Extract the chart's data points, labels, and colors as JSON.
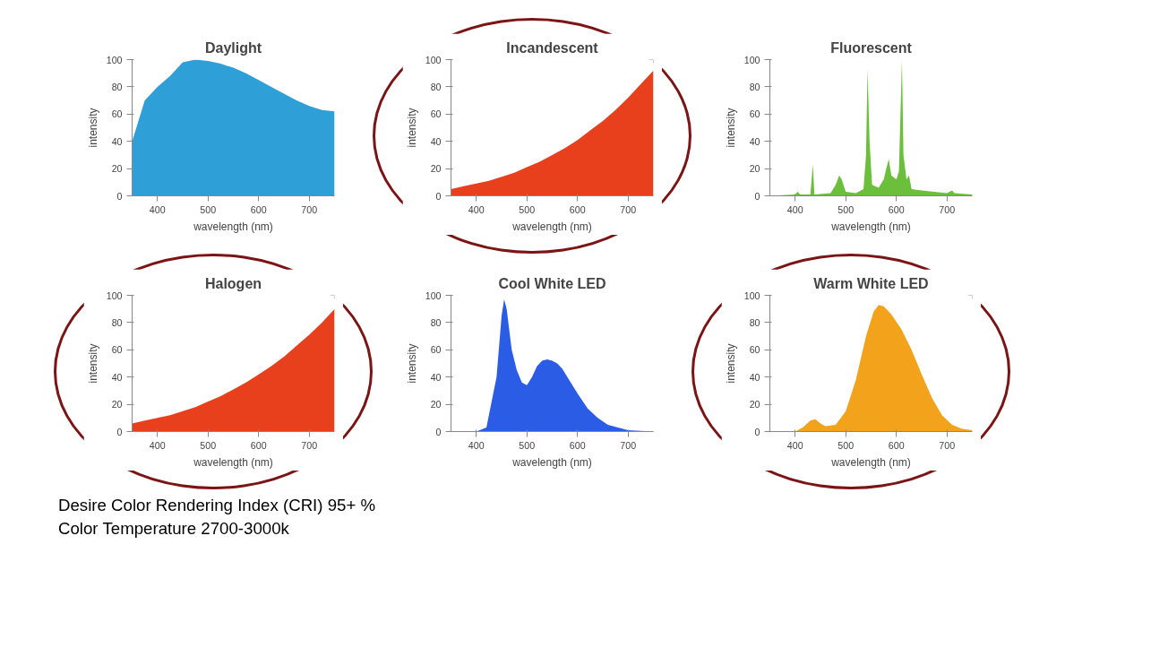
{
  "chart_data": [
    {
      "type": "area",
      "title": "Daylight",
      "xlabel": "wavelength (nm)",
      "ylabel": "intensity",
      "xlim": [
        350,
        750
      ],
      "xticks": [
        400,
        500,
        600,
        700
      ],
      "ylim": [
        0,
        100
      ],
      "yticks": [
        0,
        20,
        40,
        60,
        80,
        100
      ],
      "grid": false,
      "series": [
        {
          "color": "#2f9fd8",
          "x": [
            350,
            375,
            400,
            425,
            450,
            475,
            500,
            525,
            550,
            575,
            600,
            625,
            650,
            675,
            700,
            725,
            750
          ],
          "values": [
            40,
            70,
            80,
            88,
            98,
            100,
            99,
            97,
            94,
            90,
            85,
            80,
            75,
            70,
            66,
            63,
            62
          ]
        }
      ]
    },
    {
      "type": "area",
      "title": "Incandescent",
      "xlabel": "wavelength (nm)",
      "ylabel": "intensity",
      "xlim": [
        350,
        750
      ],
      "xticks": [
        400,
        500,
        600,
        700
      ],
      "ylim": [
        0,
        100
      ],
      "yticks": [
        0,
        20,
        40,
        60,
        80,
        100
      ],
      "grid": false,
      "series": [
        {
          "color": "#e8401c",
          "x": [
            350,
            375,
            400,
            425,
            450,
            475,
            500,
            525,
            550,
            575,
            600,
            625,
            650,
            675,
            700,
            725,
            750
          ],
          "values": [
            5,
            7,
            9,
            11,
            14,
            17,
            21,
            25,
            30,
            35,
            41,
            48,
            55,
            63,
            72,
            82,
            92
          ]
        }
      ]
    },
    {
      "type": "area",
      "title": "Fluorescent",
      "xlabel": "wavelength (nm)",
      "ylabel": "intensity",
      "xlim": [
        350,
        750
      ],
      "xticks": [
        400,
        500,
        600,
        700
      ],
      "ylim": [
        0,
        100
      ],
      "yticks": [
        0,
        20,
        40,
        60,
        80,
        100
      ],
      "grid": false,
      "series": [
        {
          "color": "#6bbf3a",
          "x": [
            350,
            400,
            405,
            410,
            430,
            435,
            438,
            470,
            480,
            487,
            492,
            500,
            520,
            535,
            540,
            543,
            547,
            552,
            565,
            575,
            580,
            585,
            590,
            600,
            605,
            611,
            614,
            620,
            625,
            630,
            650,
            700,
            710,
            715,
            750
          ],
          "values": [
            0,
            1,
            3,
            1,
            1,
            23,
            1,
            2,
            8,
            15,
            12,
            3,
            2,
            5,
            30,
            93,
            40,
            8,
            6,
            12,
            20,
            27,
            15,
            12,
            18,
            100,
            30,
            12,
            15,
            5,
            4,
            2,
            4,
            2,
            1
          ]
        }
      ]
    },
    {
      "type": "area",
      "title": "Halogen",
      "xlabel": "wavelength (nm)",
      "ylabel": "intensity",
      "xlim": [
        350,
        750
      ],
      "xticks": [
        400,
        500,
        600,
        700
      ],
      "ylim": [
        0,
        100
      ],
      "yticks": [
        0,
        20,
        40,
        60,
        80,
        100
      ],
      "grid": false,
      "series": [
        {
          "color": "#e8401c",
          "x": [
            350,
            375,
            400,
            425,
            450,
            475,
            500,
            525,
            550,
            575,
            600,
            625,
            650,
            675,
            700,
            725,
            750
          ],
          "values": [
            6,
            8,
            10,
            12,
            15,
            18,
            22,
            26,
            31,
            36,
            42,
            48,
            55,
            63,
            71,
            80,
            90
          ]
        }
      ]
    },
    {
      "type": "area",
      "title": "Cool White LED",
      "xlabel": "wavelength (nm)",
      "ylabel": "intensity",
      "xlim": [
        350,
        750
      ],
      "xticks": [
        400,
        500,
        600,
        700
      ],
      "ylim": [
        0,
        100
      ],
      "yticks": [
        0,
        20,
        40,
        60,
        80,
        100
      ],
      "grid": false,
      "series": [
        {
          "color": "#2b5ce6",
          "x": [
            350,
            400,
            420,
            440,
            450,
            455,
            460,
            470,
            480,
            490,
            500,
            510,
            520,
            530,
            540,
            550,
            560,
            570,
            580,
            600,
            620,
            640,
            660,
            700,
            750
          ],
          "values": [
            0,
            0,
            3,
            40,
            85,
            97,
            90,
            60,
            45,
            36,
            34,
            40,
            48,
            52,
            53,
            52,
            50,
            46,
            40,
            28,
            17,
            10,
            5,
            1,
            0
          ]
        }
      ]
    },
    {
      "type": "area",
      "title": "Warm White LED",
      "xlabel": "wavelength (nm)",
      "ylabel": "intensity",
      "xlim": [
        350,
        750
      ],
      "xticks": [
        400,
        500,
        600,
        700
      ],
      "ylim": [
        0,
        100
      ],
      "yticks": [
        0,
        20,
        40,
        60,
        80,
        100
      ],
      "grid": false,
      "annotations": [
        "Desire Color Rendering Index (CRI) 95+ %",
        "Color Temperature 2700-3000k"
      ],
      "series": [
        {
          "color": "#f2a21b",
          "x": [
            350,
            400,
            415,
            430,
            440,
            450,
            460,
            480,
            500,
            520,
            540,
            555,
            565,
            575,
            590,
            610,
            630,
            650,
            670,
            690,
            710,
            730,
            750
          ],
          "values": [
            0,
            0,
            3,
            8,
            9,
            6,
            4,
            5,
            15,
            38,
            70,
            88,
            93,
            92,
            86,
            75,
            60,
            42,
            25,
            12,
            5,
            2,
            1
          ]
        }
      ]
    }
  ]
}
